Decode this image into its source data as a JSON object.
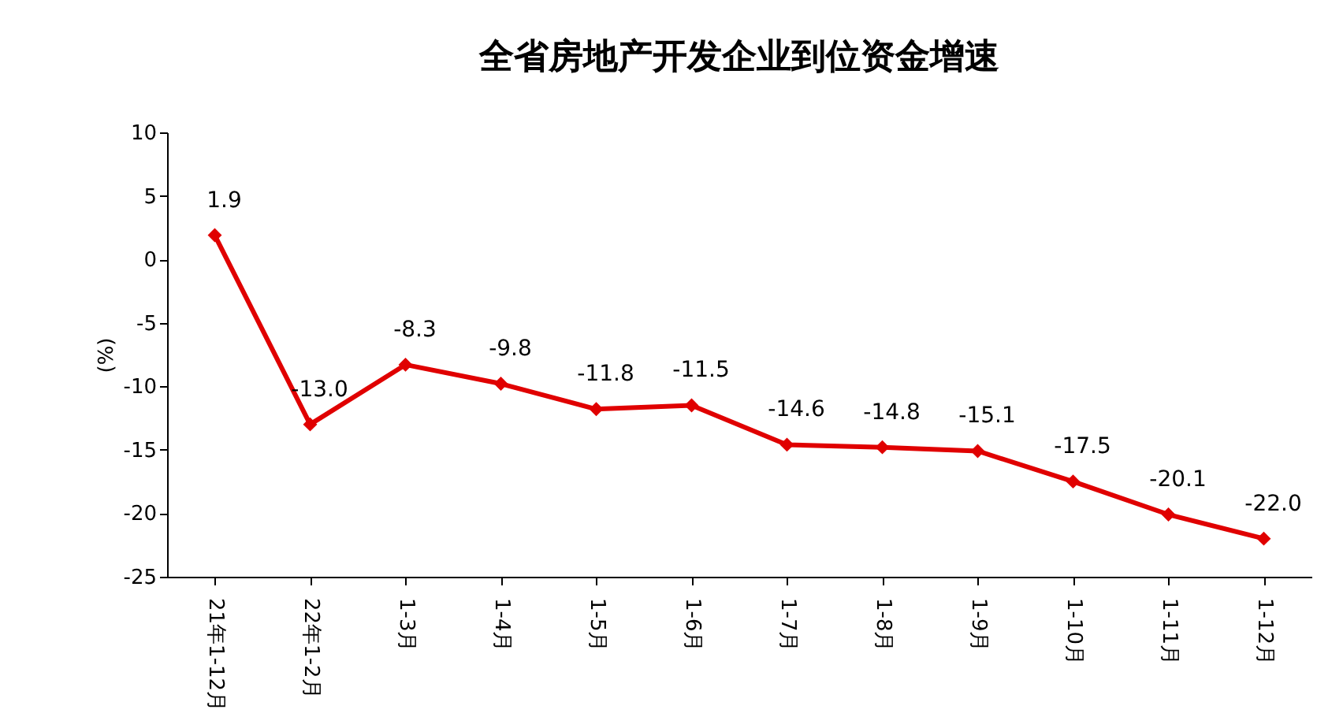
{
  "chart_data": {
    "type": "line",
    "title": "全省房地产开发企业到位资金增速",
    "ylabel": "(%)",
    "categories": [
      "21年1-12月",
      "22年1-2月",
      "1-3月",
      "1-4月",
      "1-5月",
      "1-6月",
      "1-7月",
      "1-8月",
      "1-9月",
      "1-10月",
      "1-11月",
      "1-12月"
    ],
    "values": [
      1.9,
      -13.0,
      -8.3,
      -9.8,
      -11.8,
      -11.5,
      -14.6,
      -14.8,
      -15.1,
      -17.5,
      -20.1,
      -22.0
    ],
    "value_labels": [
      "1.9",
      "-13.0",
      "-8.3",
      "-9.8",
      "-11.8",
      "-11.5",
      "-14.6",
      "-14.8",
      "-15.1",
      "-17.5",
      "-20.1",
      "-22.0"
    ],
    "color": "#e00000",
    "marker": "diamond",
    "line_style": "solid",
    "ylim": [
      -25,
      10
    ],
    "yticks": [
      -25,
      -20,
      -15,
      -10,
      -5,
      0,
      5,
      10
    ],
    "grid": false
  }
}
